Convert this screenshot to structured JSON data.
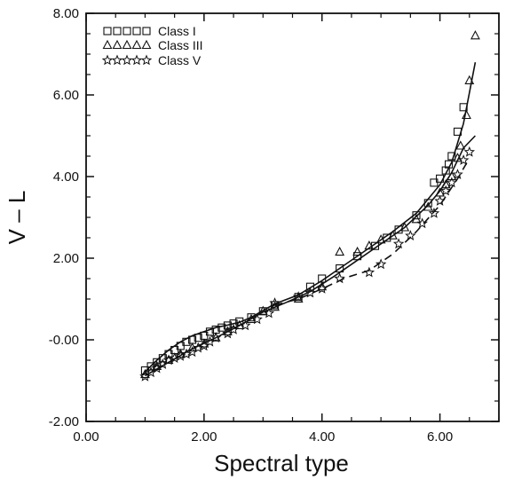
{
  "chart_data": {
    "type": "scatter",
    "title": "",
    "xlabel": "Spectral type",
    "ylabel": "V  –  L",
    "xlim": [
      0,
      7
    ],
    "ylim": [
      -2,
      8
    ],
    "xticks": [
      0,
      2,
      4,
      6
    ],
    "yticks": [
      -2,
      0,
      2,
      4,
      6,
      8
    ],
    "xtick_labels": [
      "0.00",
      "2.00",
      "4.00",
      "6.00"
    ],
    "ytick_labels": [
      "-2.00",
      "-0.00",
      "2.00",
      "4.00",
      "6.00",
      "8.00"
    ],
    "grid": false,
    "legend_position": "top-left",
    "legend": [
      {
        "label": "Class  I",
        "marker": "square"
      },
      {
        "label": "Class  III",
        "marker": "triangle"
      },
      {
        "label": "Class  V",
        "marker": "star"
      }
    ],
    "series": [
      {
        "name": "Class  I",
        "marker": "square",
        "points": [
          [
            1.0,
            -0.75
          ],
          [
            1.1,
            -0.65
          ],
          [
            1.2,
            -0.55
          ],
          [
            1.3,
            -0.45
          ],
          [
            1.4,
            -0.35
          ],
          [
            1.5,
            -0.25
          ],
          [
            1.6,
            -0.15
          ],
          [
            1.7,
            -0.05
          ],
          [
            1.8,
            0.0
          ],
          [
            1.9,
            0.05
          ],
          [
            2.0,
            0.1
          ],
          [
            2.1,
            0.2
          ],
          [
            2.2,
            0.25
          ],
          [
            2.3,
            0.3
          ],
          [
            2.4,
            0.35
          ],
          [
            2.5,
            0.4
          ],
          [
            2.6,
            0.45
          ],
          [
            2.8,
            0.55
          ],
          [
            3.0,
            0.7
          ],
          [
            3.2,
            0.85
          ],
          [
            3.6,
            1.05
          ],
          [
            3.8,
            1.3
          ],
          [
            4.0,
            1.5
          ],
          [
            4.3,
            1.75
          ],
          [
            4.6,
            2.05
          ],
          [
            4.9,
            2.3
          ],
          [
            5.1,
            2.5
          ],
          [
            5.3,
            2.7
          ],
          [
            5.6,
            3.05
          ],
          [
            5.8,
            3.35
          ],
          [
            5.9,
            3.85
          ],
          [
            6.0,
            3.95
          ],
          [
            6.1,
            4.15
          ],
          [
            6.15,
            4.3
          ],
          [
            6.2,
            4.5
          ],
          [
            6.3,
            5.1
          ],
          [
            6.4,
            5.7
          ]
        ]
      },
      {
        "name": "Class  III",
        "marker": "triangle",
        "points": [
          [
            1.0,
            -0.85
          ],
          [
            1.2,
            -0.65
          ],
          [
            1.4,
            -0.5
          ],
          [
            1.6,
            -0.35
          ],
          [
            1.8,
            -0.2
          ],
          [
            2.0,
            -0.1
          ],
          [
            2.2,
            0.05
          ],
          [
            2.4,
            0.2
          ],
          [
            2.6,
            0.35
          ],
          [
            2.8,
            0.5
          ],
          [
            3.0,
            0.7
          ],
          [
            3.2,
            0.8
          ],
          [
            3.6,
            1.0
          ],
          [
            4.0,
            1.3
          ],
          [
            4.3,
            2.15
          ],
          [
            4.6,
            2.15
          ],
          [
            4.8,
            2.3
          ],
          [
            5.0,
            2.45
          ],
          [
            5.2,
            2.55
          ],
          [
            5.4,
            2.75
          ],
          [
            5.6,
            2.95
          ],
          [
            5.8,
            3.25
          ],
          [
            6.0,
            3.6
          ],
          [
            6.1,
            3.8
          ],
          [
            6.2,
            4.0
          ],
          [
            6.3,
            4.45
          ],
          [
            6.35,
            4.75
          ],
          [
            6.45,
            5.5
          ],
          [
            6.5,
            6.35
          ],
          [
            6.6,
            7.45
          ]
        ]
      },
      {
        "name": "Class  V",
        "marker": "star",
        "points": [
          [
            1.0,
            -0.9
          ],
          [
            1.1,
            -0.8
          ],
          [
            1.2,
            -0.7
          ],
          [
            1.3,
            -0.6
          ],
          [
            1.4,
            -0.5
          ],
          [
            1.5,
            -0.45
          ],
          [
            1.6,
            -0.4
          ],
          [
            1.7,
            -0.35
          ],
          [
            1.8,
            -0.3
          ],
          [
            1.9,
            -0.2
          ],
          [
            2.0,
            -0.15
          ],
          [
            2.1,
            -0.05
          ],
          [
            2.2,
            0.05
          ],
          [
            2.4,
            0.15
          ],
          [
            2.5,
            0.25
          ],
          [
            2.7,
            0.35
          ],
          [
            2.9,
            0.5
          ],
          [
            3.1,
            0.65
          ],
          [
            3.2,
            0.9
          ],
          [
            3.6,
            1.05
          ],
          [
            3.8,
            1.15
          ],
          [
            4.0,
            1.25
          ],
          [
            4.3,
            1.5
          ],
          [
            4.8,
            1.65
          ],
          [
            5.0,
            1.85
          ],
          [
            5.3,
            2.35
          ],
          [
            5.5,
            2.55
          ],
          [
            5.7,
            2.85
          ],
          [
            5.9,
            3.1
          ],
          [
            6.0,
            3.4
          ],
          [
            6.1,
            3.65
          ],
          [
            6.2,
            3.85
          ],
          [
            6.3,
            4.05
          ],
          [
            6.4,
            4.4
          ],
          [
            6.5,
            4.6
          ]
        ]
      }
    ],
    "fit_lines": [
      {
        "for": "Class  I",
        "style": "solid",
        "points": [
          [
            1.0,
            -0.78
          ],
          [
            1.2,
            -0.5
          ],
          [
            1.4,
            -0.25
          ],
          [
            1.6,
            -0.05
          ],
          [
            1.8,
            0.1
          ],
          [
            2.0,
            0.2
          ],
          [
            2.2,
            0.3
          ],
          [
            2.4,
            0.36
          ],
          [
            2.6,
            0.43
          ],
          [
            2.8,
            0.55
          ],
          [
            3.0,
            0.72
          ],
          [
            3.2,
            0.88
          ],
          [
            3.6,
            1.1
          ],
          [
            4.0,
            1.45
          ],
          [
            4.4,
            1.85
          ],
          [
            4.8,
            2.25
          ],
          [
            5.2,
            2.65
          ],
          [
            5.6,
            3.1
          ],
          [
            6.0,
            3.8
          ],
          [
            6.2,
            4.35
          ],
          [
            6.4,
            5.3
          ],
          [
            6.6,
            6.8
          ]
        ]
      },
      {
        "for": "Class  III",
        "style": "solid",
        "points": [
          [
            1.0,
            -0.88
          ],
          [
            1.4,
            -0.55
          ],
          [
            1.8,
            -0.22
          ],
          [
            2.2,
            0.05
          ],
          [
            2.6,
            0.35
          ],
          [
            3.0,
            0.68
          ],
          [
            3.4,
            0.92
          ],
          [
            3.8,
            1.18
          ],
          [
            4.2,
            1.55
          ],
          [
            4.6,
            1.95
          ],
          [
            5.0,
            2.35
          ],
          [
            5.4,
            2.75
          ],
          [
            5.8,
            3.3
          ],
          [
            6.0,
            3.65
          ],
          [
            6.2,
            4.1
          ],
          [
            6.4,
            4.7
          ],
          [
            6.6,
            5.0
          ]
        ]
      },
      {
        "for": "Class  V",
        "style": "dashed",
        "points": [
          [
            3.2,
            0.85
          ],
          [
            3.6,
            1.0
          ],
          [
            4.0,
            1.25
          ],
          [
            4.4,
            1.52
          ],
          [
            4.8,
            1.7
          ],
          [
            5.2,
            2.1
          ],
          [
            5.6,
            2.65
          ],
          [
            6.0,
            3.3
          ],
          [
            6.3,
            3.95
          ],
          [
            6.5,
            4.45
          ]
        ]
      }
    ]
  }
}
